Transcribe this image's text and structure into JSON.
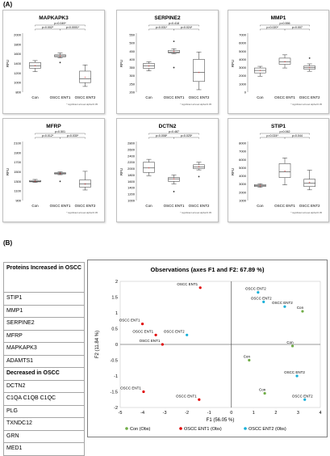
{
  "panel_labels": {
    "a": "(A)",
    "b": "(B)"
  },
  "box_common": {
    "categories": [
      "Con",
      "OSCC ENT1",
      "OSCC ENT2"
    ],
    "ylabel": "RFU",
    "footnote": "* significant at level alpha=0.05"
  },
  "proteins_table": {
    "header": "Proteins Increased in OSCC",
    "increased": [
      "STIP1",
      "MMP1",
      "SERPINE2",
      "MFRP",
      "MAPKAPK3",
      "ADAMTS1"
    ],
    "decreased_header": "Decreased in OSCC",
    "decreased": [
      "DCTN2",
      "C1QA C1QB  C1QC",
      "PLG",
      "TXNDC12",
      "GRN",
      "MED1"
    ]
  },
  "chart_data": [
    {
      "type": "box",
      "title": "MAPKAPK3",
      "ylim": [
        800,
        2000
      ],
      "yticks": [
        800,
        1000,
        1200,
        1400,
        1600,
        1800,
        2000
      ],
      "boxes": [
        {
          "category": "Con",
          "min": 1230,
          "q1": 1300,
          "median": 1350,
          "q3": 1420,
          "max": 1460,
          "mean": 1355,
          "outliers": []
        },
        {
          "category": "OSCC ENT1",
          "min": 1520,
          "q1": 1540,
          "median": 1560,
          "q3": 1580,
          "max": 1620,
          "mean": 1560,
          "outliers": [
            1420
          ]
        },
        {
          "category": "OSCC ENT2",
          "min": 920,
          "q1": 1000,
          "median": 1080,
          "q3": 1240,
          "max": 1370,
          "mean": 1110,
          "outliers": []
        }
      ],
      "comparisons": [
        {
          "from": 0,
          "to": 1,
          "label": "p=0.002*",
          "level": 1
        },
        {
          "from": 1,
          "to": 2,
          "label": "p<0.0001*",
          "level": 1
        },
        {
          "from": 0,
          "to": 2,
          "label": "p=0.049*",
          "level": 2
        }
      ]
    },
    {
      "type": "box",
      "title": "SERPINE2",
      "ylim": [
        200,
        550
      ],
      "yticks": [
        200,
        250,
        300,
        350,
        400,
        450,
        500,
        550
      ],
      "boxes": [
        {
          "category": "Con",
          "min": 330,
          "q1": 345,
          "median": 360,
          "q3": 375,
          "max": 385,
          "mean": 360,
          "outliers": []
        },
        {
          "category": "OSCC ENT1",
          "min": 435,
          "q1": 440,
          "median": 445,
          "q3": 455,
          "max": 465,
          "mean": 448,
          "outliers": [
            350,
            510
          ]
        },
        {
          "category": "OSCC ENT2",
          "min": 215,
          "q1": 265,
          "median": 320,
          "q3": 400,
          "max": 445,
          "mean": 320,
          "outliers": []
        }
      ],
      "comparisons": [
        {
          "from": 0,
          "to": 1,
          "label": "p=0.031*",
          "level": 1
        },
        {
          "from": 1,
          "to": 2,
          "label": "p=0.024*",
          "level": 1
        },
        {
          "from": 0,
          "to": 2,
          "label": "p=0.418",
          "level": 2
        }
      ]
    },
    {
      "type": "box",
      "title": "MMP1",
      "ylim": [
        0,
        7000
      ],
      "yticks": [
        0,
        1000,
        2000,
        3000,
        4000,
        5000,
        6000,
        7000
      ],
      "boxes": [
        {
          "category": "Con",
          "min": 1950,
          "q1": 2350,
          "median": 2650,
          "q3": 2950,
          "max": 3150,
          "mean": 2650,
          "outliers": []
        },
        {
          "category": "OSCC ENT1",
          "min": 2950,
          "q1": 3400,
          "median": 3700,
          "q3": 4150,
          "max": 4550,
          "mean": 3750,
          "outliers": []
        },
        {
          "category": "OSCC ENT2",
          "min": 2550,
          "q1": 2800,
          "median": 3000,
          "q3": 3200,
          "max": 3450,
          "mean": 3000,
          "outliers": [
            4150
          ]
        }
      ],
      "comparisons": [
        {
          "from": 0,
          "to": 1,
          "label": "p=0.020*",
          "level": 1
        },
        {
          "from": 1,
          "to": 2,
          "label": "p=0.007",
          "level": 1
        },
        {
          "from": 0,
          "to": 2,
          "label": "p=0.556",
          "level": 2
        }
      ]
    },
    {
      "type": "box",
      "title": "MFRP",
      "ylim": [
        900,
        2100
      ],
      "yticks": [
        900,
        1100,
        1300,
        1500,
        1700,
        1900,
        2100
      ],
      "boxes": [
        {
          "category": "Con",
          "min": 1280,
          "q1": 1290,
          "median": 1300,
          "q3": 1320,
          "max": 1340,
          "mean": 1305,
          "outliers": []
        },
        {
          "category": "OSCC ENT1",
          "min": 1440,
          "q1": 1455,
          "median": 1470,
          "q3": 1480,
          "max": 1500,
          "mean": 1470,
          "outliers": [
            1300
          ]
        },
        {
          "category": "OSCC ENT2",
          "min": 1120,
          "q1": 1180,
          "median": 1250,
          "q3": 1330,
          "max": 1510,
          "mean": 1250,
          "outliers": []
        }
      ],
      "comparisons": [
        {
          "from": 0,
          "to": 1,
          "label": "p=0.012*",
          "level": 1
        },
        {
          "from": 1,
          "to": 2,
          "label": "p=0.030*",
          "level": 1
        },
        {
          "from": 0,
          "to": 2,
          "label": "p=0.501",
          "level": 2
        }
      ]
    },
    {
      "type": "box",
      "title": "DCTN2",
      "ylim": [
        1000,
        2800
      ],
      "yticks": [
        1000,
        1200,
        1400,
        1600,
        1800,
        2000,
        2200,
        2400,
        2600,
        2800
      ],
      "boxes": [
        {
          "category": "Con",
          "min": 1780,
          "q1": 1880,
          "median": 2020,
          "q3": 2200,
          "max": 2290,
          "mean": 2030,
          "outliers": []
        },
        {
          "category": "OSCC ENT1",
          "min": 1520,
          "q1": 1600,
          "median": 1680,
          "q3": 1720,
          "max": 1800,
          "mean": 1680,
          "outliers": [
            1280
          ]
        },
        {
          "category": "OSCC ENT2",
          "min": 1960,
          "q1": 2000,
          "median": 2050,
          "q3": 2120,
          "max": 2200,
          "mean": 2060,
          "outliers": [
            1750
          ]
        }
      ],
      "comparisons": [
        {
          "from": 0,
          "to": 1,
          "label": "p=0.008*",
          "level": 1
        },
        {
          "from": 1,
          "to": 2,
          "label": "p=0.025*",
          "level": 1
        },
        {
          "from": 0,
          "to": 2,
          "label": "p=0.487",
          "level": 2
        }
      ]
    },
    {
      "type": "box",
      "title": "STIP1",
      "ylim": [
        1000,
        8000
      ],
      "yticks": [
        1000,
        2000,
        3000,
        4000,
        5000,
        6000,
        7000,
        8000
      ],
      "boxes": [
        {
          "category": "Con",
          "min": 2600,
          "q1": 2700,
          "median": 2800,
          "q3": 2950,
          "max": 3050,
          "mean": 2820,
          "outliers": []
        },
        {
          "category": "OSCC ENT1",
          "min": 2900,
          "q1": 3800,
          "median": 4500,
          "q3": 5500,
          "max": 6200,
          "mean": 4600,
          "outliers": []
        },
        {
          "category": "OSCC ENT2",
          "min": 2300,
          "q1": 2700,
          "median": 3100,
          "q3": 3600,
          "max": 4700,
          "mean": 3200,
          "outliers": []
        }
      ],
      "comparisons": [
        {
          "from": 0,
          "to": 1,
          "label": "p=0.024*",
          "level": 1
        },
        {
          "from": 1,
          "to": 2,
          "label": "p=0.044",
          "level": 1
        },
        {
          "from": 0,
          "to": 2,
          "label": "p=0.062",
          "level": 2
        }
      ]
    },
    {
      "type": "scatter",
      "title": "Observations (axes F1 and F2: 67.89 %)",
      "xlabel": "F1 (56.05 %)",
      "ylabel": "F2 (11.84 %)",
      "xlim": [
        -5,
        4
      ],
      "ylim": [
        -2,
        2
      ],
      "xticks": [
        -5,
        -4,
        -3,
        -2,
        -1,
        0,
        1,
        2,
        3,
        4
      ],
      "yticks": [
        -2,
        -1.5,
        -1,
        -0.5,
        0,
        0.5,
        1,
        1.5,
        2
      ],
      "series": [
        {
          "name": "Con (Obs)",
          "color": "#70ad47",
          "points": [
            {
              "x": 3.2,
              "y": 1.05,
              "label": "Con"
            },
            {
              "x": 2.75,
              "y": -0.05,
              "label": "Con"
            },
            {
              "x": 0.8,
              "y": -0.5,
              "label": "Con"
            },
            {
              "x": 1.5,
              "y": -1.55,
              "label": "Con"
            }
          ]
        },
        {
          "name": "OSCC ENT1 (Obs)",
          "color": "#e00000",
          "points": [
            {
              "x": -1.4,
              "y": 1.8,
              "label": "OSCC ENT1"
            },
            {
              "x": -4.0,
              "y": 0.65,
              "label": "OSCC ENT1"
            },
            {
              "x": -3.4,
              "y": 0.3,
              "label": "OSCC ENT1"
            },
            {
              "x": -3.1,
              "y": 0.0,
              "label": "OSCC ENT1"
            },
            {
              "x": -3.95,
              "y": -1.5,
              "label": "OSCC ENT1"
            },
            {
              "x": -1.45,
              "y": -1.75,
              "label": "OSCC ENT1"
            }
          ]
        },
        {
          "name": "OSCC ENT2 (Obs)",
          "color": "#17b0d9",
          "points": [
            {
              "x": 1.2,
              "y": 1.65,
              "label": "OSCC ENT2"
            },
            {
              "x": 1.45,
              "y": 1.35,
              "label": "OSCC ENT2"
            },
            {
              "x": 2.4,
              "y": 1.2,
              "label": "OSCC ENT2"
            },
            {
              "x": -2.0,
              "y": 0.3,
              "label": "OSCC ENT2"
            },
            {
              "x": 2.95,
              "y": -1.0,
              "label": "OSCC ENT2"
            },
            {
              "x": 3.3,
              "y": -1.75,
              "label": "OSCC ENT2"
            }
          ]
        }
      ],
      "legend_position": "bottom"
    }
  ]
}
